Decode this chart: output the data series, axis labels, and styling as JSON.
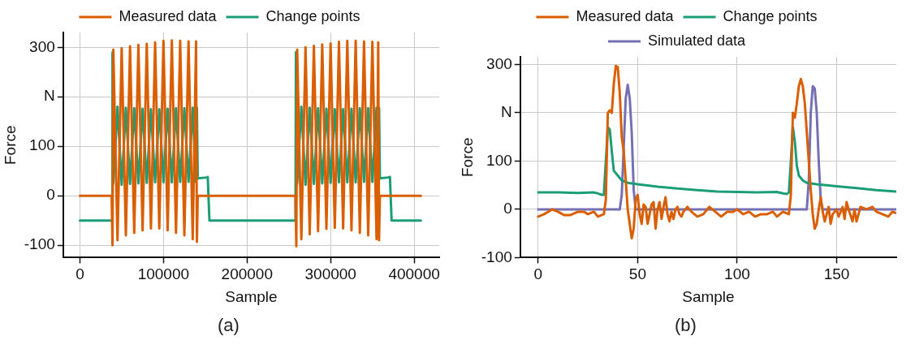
{
  "chart_data": [
    {
      "type": "line",
      "xlabel": "Sample",
      "ylabel": "Force",
      "annotations": [
        "(a)"
      ],
      "legend": "top",
      "grid": true,
      "marker": "none",
      "line_style": "solid",
      "xlim": [
        -20000,
        430000
      ],
      "xticks": [
        0,
        100000,
        200000,
        300000,
        400000
      ],
      "ylim": [
        -125,
        330
      ],
      "yticks": [
        -100,
        0,
        100,
        {
          "value": 200,
          "label": "N"
        },
        300
      ],
      "series": [
        {
          "name": "Measured data",
          "color": "#d95f02",
          "x": [
            0,
            38000,
            39000,
            40000,
            45000,
            50000,
            55000,
            60000,
            65000,
            70000,
            75000,
            80000,
            85000,
            90000,
            95000,
            100000,
            105000,
            110000,
            115000,
            120000,
            125000,
            130000,
            135000,
            139000,
            140000,
            141000,
            258000,
            259000,
            260000,
            265000,
            270000,
            275000,
            280000,
            285000,
            290000,
            295000,
            300000,
            305000,
            310000,
            315000,
            320000,
            325000,
            330000,
            335000,
            340000,
            345000,
            350000,
            355000,
            357000,
            358000,
            359000,
            408000
          ],
          "values": [
            0,
            0,
            -100,
            295,
            -90,
            298,
            -80,
            302,
            -75,
            305,
            -70,
            307,
            -66,
            310,
            -66,
            313,
            -70,
            314,
            -75,
            313,
            -80,
            312,
            -88,
            312,
            -93,
            0,
            0,
            -102,
            295,
            -88,
            300,
            -78,
            303,
            -72,
            306,
            -67,
            308,
            -65,
            311,
            -66,
            313,
            -70,
            313,
            -75,
            312,
            -80,
            311,
            -88,
            310,
            -90,
            0,
            0
          ]
        },
        {
          "name": "Change points",
          "color": "#1b9e77",
          "x": [
            0,
            38500,
            39000,
            40000,
            45000,
            50000,
            55000,
            60000,
            65000,
            70000,
            75000,
            80000,
            85000,
            90000,
            95000,
            100000,
            105000,
            110000,
            115000,
            120000,
            125000,
            130000,
            135000,
            139000,
            140000,
            141000,
            152000,
            153000,
            155000,
            258000,
            258500,
            260000,
            265000,
            270000,
            275000,
            280000,
            285000,
            290000,
            295000,
            300000,
            305000,
            310000,
            315000,
            320000,
            325000,
            330000,
            335000,
            340000,
            345000,
            350000,
            355000,
            357000,
            358000,
            359000,
            369000,
            371000,
            373000,
            408000
          ],
          "values": [
            -50,
            -50,
            290,
            25,
            180,
            22,
            178,
            24,
            177,
            25,
            176,
            26,
            175,
            27,
            175,
            27,
            176,
            27,
            177,
            28,
            177,
            28,
            178,
            28,
            178,
            35,
            37,
            38,
            -50,
            -50,
            290,
            25,
            180,
            22,
            178,
            24,
            177,
            25,
            176,
            26,
            175,
            27,
            175,
            27,
            176,
            27,
            177,
            28,
            177,
            28,
            178,
            28,
            178,
            35,
            37,
            38,
            -50,
            -50
          ]
        }
      ]
    },
    {
      "type": "line",
      "xlabel": "Sample",
      "ylabel": "Force",
      "annotations": [
        "(b)"
      ],
      "legend": "top",
      "grid": true,
      "marker": "none",
      "line_style": "solid",
      "xlim": [
        -9,
        180
      ],
      "xticks": [
        0,
        50,
        100,
        150
      ],
      "ylim": [
        -100,
        316
      ],
      "yticks": [
        -100,
        0,
        100,
        {
          "value": 200,
          "label": "N"
        },
        300
      ],
      "series": [
        {
          "name": "Measured data",
          "color": "#d95f02",
          "x": [
            0,
            3,
            7,
            10,
            13,
            16,
            20,
            23,
            25,
            28,
            30,
            33,
            34,
            35,
            36,
            37,
            38,
            39,
            40,
            41,
            42,
            43,
            44,
            45,
            46,
            47,
            48,
            49,
            50,
            51,
            52,
            53,
            54,
            55,
            56,
            57,
            58,
            59,
            60,
            61,
            62,
            63,
            64,
            65,
            66,
            67,
            68,
            69,
            70,
            71,
            72,
            73,
            75,
            77,
            80,
            83,
            86,
            89,
            92,
            95,
            98,
            100,
            103,
            106,
            109,
            112,
            115,
            118,
            120,
            123,
            126,
            127,
            128,
            129,
            130,
            131,
            132,
            133,
            134,
            135,
            136,
            137,
            138,
            139,
            140,
            141,
            142,
            143,
            144,
            145,
            146,
            147,
            148,
            150,
            151,
            153,
            154,
            155,
            156,
            158,
            159,
            160,
            162,
            165,
            168,
            170,
            173,
            176,
            178,
            180
          ],
          "values": [
            -15,
            -10,
            0,
            -5,
            -12,
            -12,
            -5,
            -5,
            -10,
            -5,
            -15,
            -10,
            20,
            200,
            205,
            200,
            260,
            297,
            295,
            240,
            150,
            120,
            60,
            0,
            -30,
            -60,
            -40,
            20,
            30,
            -10,
            -30,
            10,
            5,
            -30,
            -10,
            10,
            15,
            -40,
            0,
            15,
            -20,
            5,
            25,
            -10,
            -25,
            -5,
            -20,
            0,
            5,
            -10,
            -15,
            -5,
            5,
            -5,
            -15,
            -10,
            5,
            -5,
            -15,
            -5,
            -5,
            0,
            -10,
            -5,
            -15,
            -10,
            -10,
            -5,
            -15,
            -5,
            -10,
            30,
            200,
            190,
            220,
            255,
            270,
            255,
            220,
            160,
            100,
            40,
            -10,
            -40,
            -30,
            0,
            25,
            -5,
            -25,
            -10,
            5,
            -30,
            -10,
            0,
            -15,
            5,
            -20,
            15,
            0,
            -25,
            0,
            -25,
            5,
            0,
            5,
            -5,
            -10,
            -15,
            -5,
            -8
          ]
        },
        {
          "name": "Change points",
          "color": "#1b9e77",
          "x": [
            0,
            10,
            20,
            28,
            30,
            32,
            33,
            34,
            35,
            36,
            37,
            38,
            40,
            42,
            45,
            50,
            60,
            70,
            80,
            90,
            100,
            110,
            120,
            123,
            125,
            126,
            127,
            128,
            129,
            130,
            131,
            133,
            135,
            140,
            150,
            160,
            170,
            180
          ],
          "values": [
            35,
            35,
            34,
            35,
            33,
            30,
            30,
            100,
            170,
            165,
            120,
            80,
            70,
            60,
            55,
            52,
            47,
            43,
            40,
            37,
            36,
            35,
            36,
            33,
            32,
            35,
            100,
            170,
            140,
            90,
            70,
            60,
            55,
            52,
            48,
            44,
            40,
            37
          ]
        },
        {
          "name": "Simulated data",
          "color": "#7570b3",
          "x": [
            0,
            41,
            42,
            43,
            44,
            45,
            46,
            47,
            48,
            49,
            135,
            136,
            137,
            138,
            139,
            140,
            141,
            142,
            143,
            180
          ],
          "values": [
            0,
            0,
            30,
            130,
            230,
            258,
            230,
            160,
            40,
            0,
            0,
            60,
            200,
            255,
            250,
            200,
            100,
            20,
            0,
            0
          ]
        }
      ]
    }
  ]
}
